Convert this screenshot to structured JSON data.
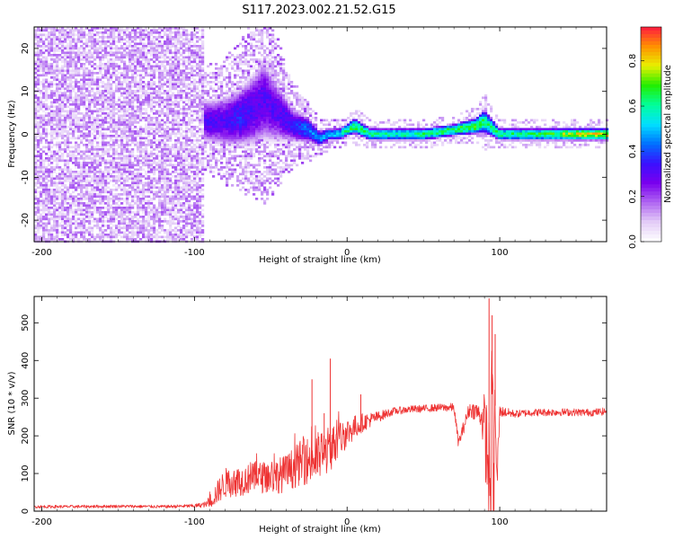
{
  "title": "S117.2023.002.21.52.G15",
  "colors": {
    "snr_line": "#ee3333",
    "spectrogram_background": "#ffffff",
    "colormap": [
      "#ffffff",
      "#e3ccf7",
      "#b066f2",
      "#7a00ee",
      "#3a10ff",
      "#0070ff",
      "#00e0ff",
      "#00ff9a",
      "#22ee00",
      "#e8f000",
      "#ff9000",
      "#ff1a40"
    ]
  },
  "chart_data": [
    {
      "type": "heatmap",
      "xlabel": "Height of straight line (km)",
      "ylabel": "Frequency (Hz)",
      "xlim": [
        -205,
        170
      ],
      "ylim": [
        -25,
        25
      ],
      "xticks": [
        "-200",
        "-100",
        "0",
        "100"
      ],
      "yticks": [
        "20",
        "10",
        "0",
        "-10",
        "-20"
      ],
      "colorbar": {
        "label": "Normalized spectral amplitude",
        "range": [
          0,
          0.95
        ],
        "ticks": [
          "0.0",
          "0.2",
          "0.4",
          "0.6",
          "0.8"
        ]
      },
      "noise_region": {
        "x_range": [
          -205,
          -93
        ]
      },
      "band": {
        "x": [
          -95,
          -80,
          -70,
          -60,
          -55,
          -45,
          -35,
          -25,
          -18,
          -12,
          -5,
          0,
          5,
          15,
          30,
          50,
          70,
          85,
          90,
          100,
          120,
          150,
          170
        ],
        "center": [
          3,
          3,
          4,
          6,
          8,
          5,
          2,
          1,
          -1,
          0,
          0,
          1,
          2,
          0,
          0,
          0,
          1,
          2,
          3,
          0,
          0,
          0,
          0
        ],
        "half_width": [
          5,
          6,
          7,
          9,
          10,
          7,
          4,
          3,
          2,
          1.5,
          1.5,
          1.5,
          2,
          1.5,
          1.5,
          1.5,
          1.5,
          2,
          3,
          1.5,
          1.5,
          1.5,
          1.5
        ],
        "peak": [
          0.35,
          0.35,
          0.4,
          0.35,
          0.35,
          0.35,
          0.4,
          0.5,
          0.5,
          0.55,
          0.6,
          0.7,
          0.75,
          0.7,
          0.65,
          0.7,
          0.75,
          0.8,
          0.7,
          0.7,
          0.7,
          0.85,
          0.9
        ]
      }
    },
    {
      "type": "line",
      "xlabel": "Height of straight line (km)",
      "ylabel": "SNR (10 * v/v)",
      "xlim": [
        -205,
        170
      ],
      "ylim": [
        0,
        570
      ],
      "xticks": [
        "-200",
        "-100",
        "0",
        "100"
      ],
      "yticks": [
        "0",
        "100",
        "200",
        "300",
        "400",
        "500"
      ],
      "series": [
        {
          "x": [
            -205,
            -180,
            -150,
            -120,
            -100,
            -92,
            -88,
            -80,
            -70,
            -60,
            -50,
            -40,
            -30,
            -20,
            -10,
            0,
            10,
            20,
            30,
            40,
            50,
            60,
            70,
            73,
            80,
            85,
            88,
            90,
            92,
            94,
            95,
            96,
            97,
            98,
            100,
            110,
            120,
            140,
            160,
            170
          ],
          "y": [
            12,
            12,
            13,
            12,
            14,
            18,
            35,
            75,
            80,
            90,
            90,
            100,
            130,
            140,
            170,
            210,
            235,
            250,
            265,
            270,
            272,
            275,
            275,
            180,
            270,
            265,
            250,
            220,
            150,
            40,
            380,
            30,
            300,
            60,
            265,
            258,
            262,
            263,
            262,
            265
          ],
          "noise": [
            4,
            4,
            4,
            4,
            5,
            8,
            25,
            40,
            40,
            40,
            45,
            50,
            60,
            70,
            60,
            40,
            25,
            15,
            10,
            10,
            10,
            10,
            12,
            15,
            20,
            25,
            30,
            100,
            150,
            150,
            150,
            150,
            120,
            80,
            15,
            10,
            10,
            10,
            10,
            10
          ],
          "spikes": [
            {
              "x": -11,
              "y": 405
            },
            {
              "x": -23,
              "y": 350
            },
            {
              "x": 9,
              "y": 310
            },
            {
              "x": -15,
              "y": 260
            },
            {
              "x": 93,
              "y": 565
            },
            {
              "x": 95,
              "y": 520
            },
            {
              "x": 97,
              "y": 470
            }
          ]
        }
      ]
    }
  ]
}
